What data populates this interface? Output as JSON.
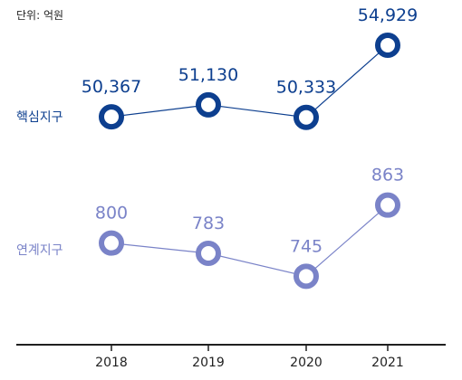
{
  "unit_label": "단위: 억원",
  "chart_data": [
    {
      "type": "line",
      "categories": [
        "2018",
        "2019",
        "2020",
        "2021"
      ],
      "series": [
        {
          "name": "핵심지구",
          "values": [
            50367,
            51130,
            50333,
            54929
          ],
          "labels": [
            "50,367",
            "51,130",
            "50,333",
            "54,929"
          ],
          "color": "#0d3f8f"
        },
        {
          "name": "연계지구",
          "values": [
            800,
            783,
            745,
            863
          ],
          "labels": [
            "800",
            "783",
            "745",
            "863"
          ],
          "color": "#7a83c8"
        }
      ],
      "axis_color": "#1f1f1f",
      "grid": false,
      "legend": "left, series names beside each line"
    }
  ]
}
